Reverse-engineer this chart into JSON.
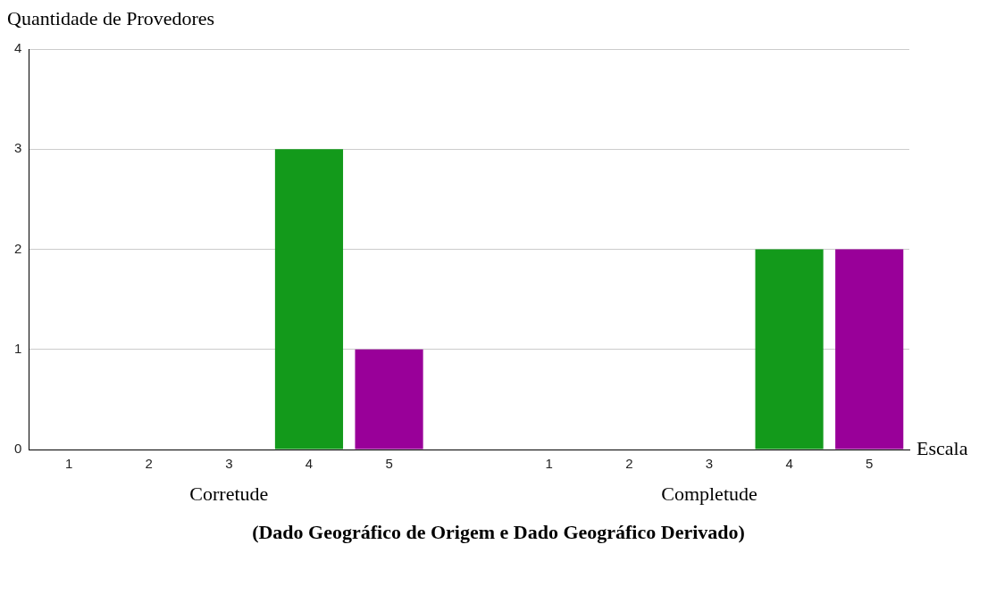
{
  "chart_data": {
    "type": "bar",
    "subtitle": "(Dado Geográfico de Origem e Dado Geográfico Derivado)",
    "xlabel": "Escala",
    "ylabel": "Quantidade de Provedores",
    "categories": [
      "1",
      "2",
      "3",
      "4",
      "5",
      null,
      "1",
      "2",
      "3",
      "4",
      "5"
    ],
    "values": [
      0,
      0,
      0,
      3,
      1,
      null,
      0,
      0,
      0,
      2,
      2
    ],
    "colors": [
      "#139a1b",
      "#139a1b",
      "#139a1b",
      "#139a1b",
      "#990099",
      "#139a1b",
      "#139a1b",
      "#139a1b",
      "#139a1b",
      "#139a1b",
      "#990099"
    ],
    "annotations": [
      "Corretude",
      "Completude"
    ],
    "ylim": [
      0,
      4
    ],
    "yticks": [
      0,
      1,
      2,
      3,
      4
    ],
    "grid": "y",
    "legend": false
  }
}
